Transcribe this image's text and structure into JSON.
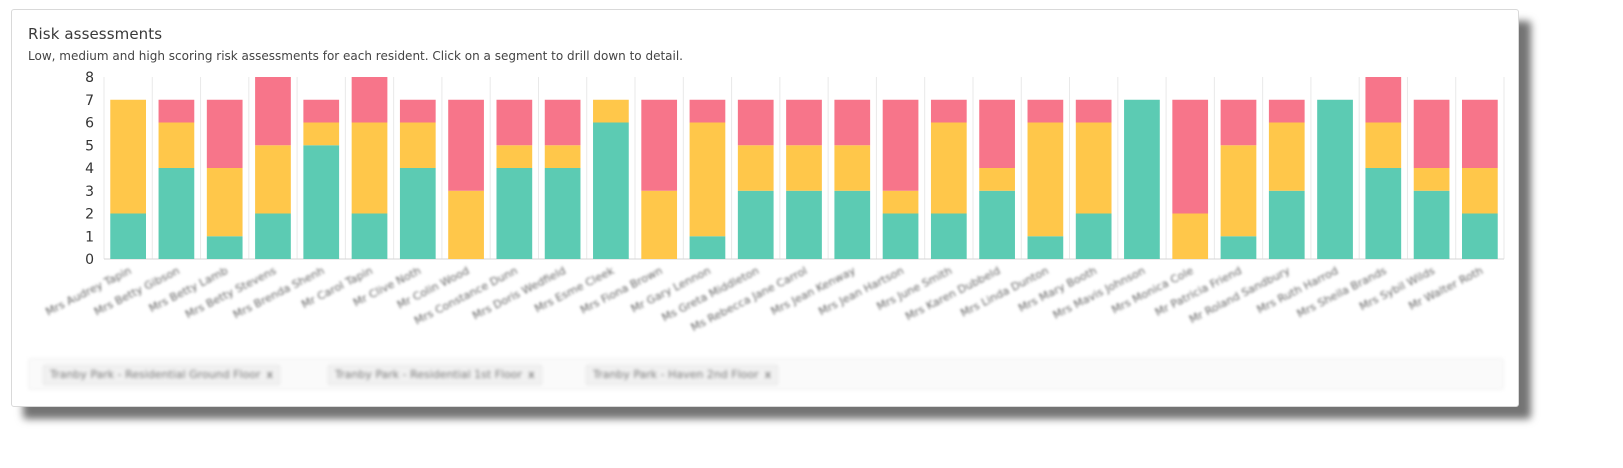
{
  "card": {
    "title": "Risk assessments",
    "subtitle": "Low, medium and high scoring risk assessments for each resident. Click on a segment to drill down to detail."
  },
  "filters": [
    {
      "label": "Tranby Park - Residential Ground Floor",
      "remove": "x"
    },
    {
      "label": "Tranby Park - Residential 1st Floor",
      "remove": "x"
    },
    {
      "label": "Tranby Park - Haven 2nd Floor",
      "remove": "x"
    }
  ],
  "colors": {
    "low": "#5ccbb3",
    "medium": "#ffc74a",
    "high": "#f7758a"
  },
  "chart_data": {
    "type": "bar",
    "stacked": true,
    "categories": [
      "Mrs Audrey Tapin",
      "Mrs Betty Gibson",
      "Mrs Betty Lamb",
      "Mrs Betty Stevens",
      "Mrs Brenda Shenh",
      "Mr Carol Tapin",
      "Mr Clive Noth",
      "Mr Colin Wood",
      "Mrs Constance Dunn",
      "Mrs Doris Wedfield",
      "Mrs Esme Cleek",
      "Mrs Fiona Brown",
      "Mr Gary Lennon",
      "Ms Greta Middleton",
      "Ms Rebecca Jane Carrol",
      "Mrs Jean Kenway",
      "Mrs Jean Hartson",
      "Mrs June Smith",
      "Mrs Karen Dubbeld",
      "Mrs Linda Dunton",
      "Mrs Mary Booth",
      "Mrs Mavis Johnson",
      "Mrs Monica Cole",
      "Mr Patricia Friend",
      "Mr Roland Sandbury",
      "Mrs Ruth Harrod",
      "Mrs Sheila Brands",
      "Mrs Sybil Wilds",
      "Mr Walter Roth"
    ],
    "series": [
      {
        "key": "low",
        "values": [
          2,
          4,
          1,
          2,
          5,
          2,
          4,
          0,
          4,
          4,
          6,
          0,
          1,
          3,
          3,
          3,
          2,
          2,
          3,
          1,
          2,
          7,
          0,
          1,
          3,
          7,
          4,
          3,
          2
        ]
      },
      {
        "key": "medium",
        "values": [
          5,
          2,
          3,
          3,
          1,
          4,
          2,
          3,
          1,
          1,
          1,
          3,
          5,
          2,
          2,
          2,
          1,
          4,
          1,
          5,
          4,
          0,
          2,
          4,
          3,
          0,
          2,
          1,
          2
        ]
      },
      {
        "key": "high",
        "values": [
          0,
          1,
          3,
          3,
          1,
          2,
          1,
          4,
          2,
          2,
          0,
          4,
          1,
          2,
          2,
          2,
          4,
          1,
          3,
          1,
          1,
          0,
          5,
          2,
          1,
          0,
          2,
          3,
          3
        ]
      }
    ],
    "ylim": [
      0,
      8
    ],
    "yticks": [
      0,
      1,
      2,
      3,
      4,
      5,
      6,
      7,
      8
    ],
    "grid": true,
    "legend": "none"
  }
}
